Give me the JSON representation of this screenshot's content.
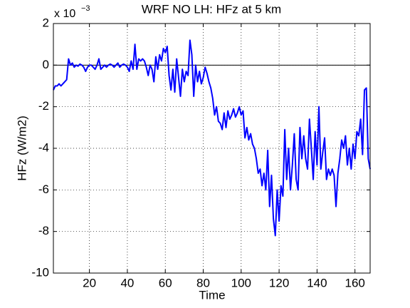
{
  "chart_data": {
    "type": "line",
    "title": "WRF NO LH: HFz at 5 km",
    "x_label": "Time",
    "y_label": "HFz (W/m2)",
    "y_scale_base": "x 10",
    "y_scale_exponent": "−3",
    "x": [
      1,
      2,
      3,
      4,
      5,
      6,
      7,
      8,
      9,
      10,
      11,
      12,
      13,
      14,
      15,
      16,
      17,
      18,
      19,
      20,
      21,
      22,
      23,
      24,
      25,
      26,
      27,
      28,
      29,
      30,
      31,
      32,
      33,
      34,
      35,
      36,
      37,
      38,
      39,
      40,
      41,
      42,
      43,
      44,
      45,
      46,
      47,
      48,
      49,
      50,
      51,
      52,
      53,
      54,
      55,
      56,
      57,
      58,
      59,
      60,
      61,
      62,
      63,
      64,
      65,
      66,
      67,
      68,
      69,
      70,
      71,
      72,
      73,
      74,
      75,
      76,
      77,
      78,
      79,
      80,
      81,
      82,
      83,
      84,
      85,
      86,
      87,
      88,
      89,
      90,
      91,
      92,
      93,
      94,
      95,
      96,
      97,
      98,
      99,
      100,
      101,
      102,
      103,
      104,
      105,
      106,
      107,
      108,
      109,
      110,
      111,
      112,
      113,
      114,
      115,
      116,
      117,
      118,
      119,
      120,
      121,
      122,
      123,
      124,
      125,
      126,
      127,
      128,
      129,
      130,
      131,
      132,
      133,
      134,
      135,
      136,
      137,
      138,
      139,
      140,
      141,
      142,
      143,
      144,
      145,
      146,
      147,
      148,
      149,
      150,
      151,
      152,
      153,
      154,
      155,
      156,
      157,
      158,
      159,
      160,
      161,
      162,
      163,
      164,
      165,
      166,
      167,
      168
    ],
    "series": [
      {
        "name": "HFz",
        "color": "#0000ff",
        "values": [
          -1.2,
          -1.0,
          -1.0,
          -0.9,
          -1.0,
          -0.9,
          -0.8,
          -0.7,
          0.3,
          0.0,
          0.1,
          -0.1,
          0.0,
          -0.05,
          0.05,
          0.0,
          -0.1,
          -0.3,
          -0.1,
          0.0,
          0.0,
          -0.1,
          -0.2,
          0.0,
          0.3,
          -0.2,
          -0.1,
          0.0,
          -0.1,
          0.0,
          0.05,
          0.0,
          -0.1,
          0.0,
          0.1,
          -0.1,
          0.0,
          0.05,
          0.0,
          -0.1,
          -0.3,
          0.2,
          -0.2,
          1.0,
          -0.2,
          0.3,
          0.2,
          0.3,
          0.2,
          -0.1,
          -0.5,
          0.0,
          -0.2,
          -0.8,
          0.4,
          -0.2,
          0.5,
          0.2,
          0.8,
          0.6,
          0.9,
          -0.5,
          -1.2,
          -0.2,
          -1.3,
          0.3,
          -0.6,
          -1.5,
          -0.2,
          -0.8,
          -0.3,
          -0.5,
          1.2,
          0.5,
          -1.5,
          0.0,
          -0.8,
          -0.3,
          -0.9,
          -0.6,
          -0.1,
          -0.4,
          -0.8,
          -1.1,
          -1.6,
          -2.4,
          -2.0,
          -2.7,
          -2.8,
          -3.1,
          -2.3,
          -3.0,
          -2.2,
          -2.6,
          -2.4,
          -2.1,
          -2.5,
          -2.3,
          -2.0,
          -2.4,
          -2.2,
          -3.5,
          -3.0,
          -3.6,
          -3.3,
          -3.8,
          -4.0,
          -4.5,
          -5.2,
          -5.0,
          -5.8,
          -5.2,
          -6.0,
          -4.1,
          -6.8,
          -5.3,
          -7.4,
          -8.2,
          -6.0,
          -7.5,
          -5.8,
          -6.3,
          -3.1,
          -5.5,
          -4.0,
          -6.0,
          -4.8,
          -3.3,
          -5.5,
          -6.0,
          -3.0,
          -4.5,
          -3.4,
          -4.5,
          -5.0,
          -2.6,
          -4.0,
          -5.5,
          -3.2,
          -4.8,
          -2.0,
          -5.0,
          -4.2,
          -3.5,
          -5.5,
          -5.0,
          -5.3,
          -5.0,
          -5.3,
          -6.8,
          -5.2,
          -4.5,
          -3.6,
          -4.0,
          -3.4,
          -4.8,
          -4.0,
          -5.0,
          -3.8,
          -4.5,
          -3.2,
          -3.4,
          -2.6,
          -4.3,
          -1.2,
          -1.1,
          -4.5,
          -5.0
        ]
      }
    ],
    "reference_line": 0,
    "xlim": [
      1,
      168
    ],
    "xticks": [
      20,
      40,
      60,
      80,
      100,
      120,
      140,
      160
    ],
    "ylim": [
      -10,
      2
    ],
    "yticks": [
      -10,
      -8,
      -6,
      -4,
      -2,
      0,
      2
    ],
    "grid": true
  }
}
